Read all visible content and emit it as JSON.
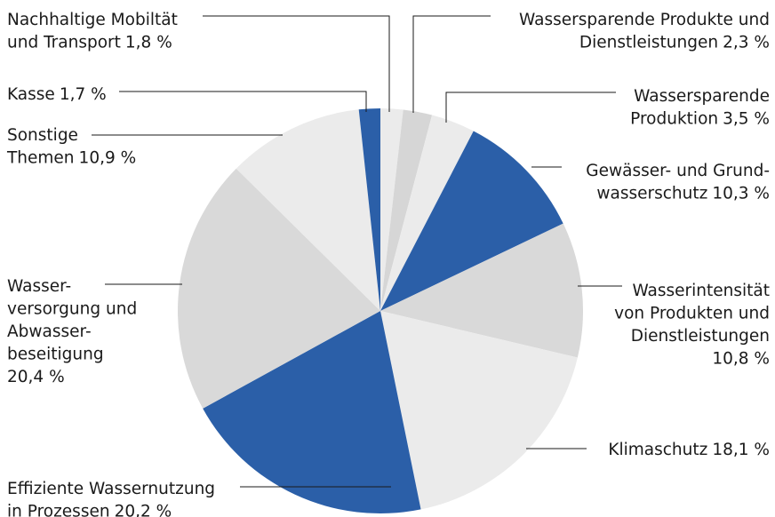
{
  "chart_data": {
    "type": "pie",
    "categories": [
      [
        "Nachhaltige Mobiltät",
        "und Transport"
      ],
      [
        "Wassersparende Produkte und",
        "Dienstleistungen"
      ],
      [
        "Wassersparende",
        "Produktion"
      ],
      [
        "Gewässer- und Grund-",
        "wasserschutz"
      ],
      [
        "Wasserintensität",
        "von Produkten und",
        "Dienstleistungen"
      ],
      [
        "Klimaschutz"
      ],
      [
        "Effiziente Wassernutzung",
        "in Prozessen"
      ],
      [
        "Wasser-",
        "versorgung und",
        "Abwasser-",
        "beseitigung"
      ],
      [
        "Sonstige",
        "Themen"
      ],
      [
        "Kasse"
      ]
    ],
    "values": [
      1.8,
      2.3,
      3.5,
      10.3,
      10.8,
      18.1,
      20.2,
      20.4,
      10.9,
      1.7
    ],
    "value_labels": [
      "1,8 %",
      "2,3 %",
      "3,5 %",
      "10,3 %",
      "10,8 %",
      "18,1 %",
      "20,2 %",
      "20,4 %",
      "10,9 %",
      "1,7 %"
    ],
    "colors": [
      "#ebebeb",
      "#d6d6d6",
      "#ebebeb",
      "#2b5fa8",
      "#d9d9d9",
      "#ebebeb",
      "#2b5fa8",
      "#d9d9d9",
      "#ebebeb",
      "#2b5fa8"
    ]
  }
}
